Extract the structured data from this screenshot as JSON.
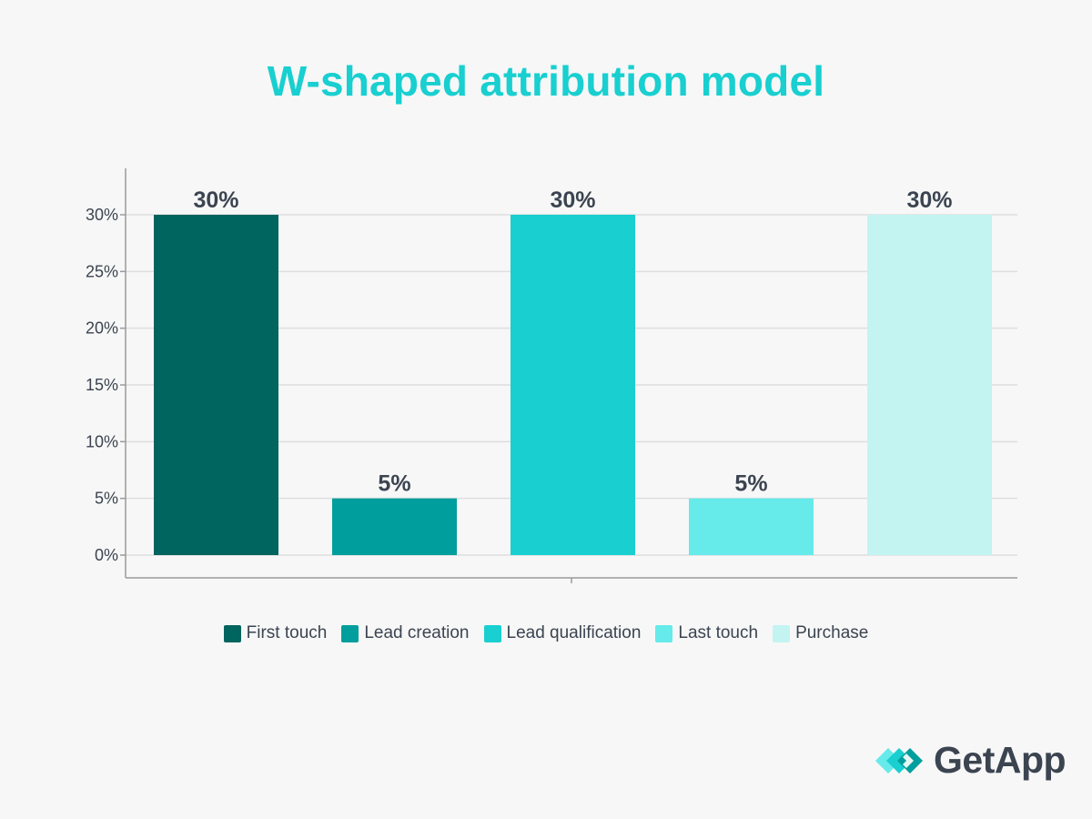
{
  "title": "W-shaped attribution model",
  "chart_data": {
    "type": "bar",
    "categories": [
      "First touch",
      "Lead creation",
      "Lead qualification",
      "Last touch",
      "Purchase"
    ],
    "values": [
      30,
      5,
      30,
      5,
      30
    ],
    "data_labels": [
      "30%",
      "5%",
      "30%",
      "5%",
      "30%"
    ],
    "colors": [
      "#00645f",
      "#009e9c",
      "#19cfd0",
      "#66eaea",
      "#c3f4f2"
    ],
    "y_ticks": [
      0,
      5,
      10,
      15,
      20,
      25,
      30
    ],
    "y_tick_labels": [
      "0%",
      "5%",
      "10%",
      "15%",
      "20%",
      "25%",
      "30%"
    ],
    "ylim": [
      0,
      30
    ],
    "xlabel": "",
    "ylabel": "",
    "grid": true,
    "legend_position": "bottom"
  },
  "logo": {
    "text": "GetApp",
    "icon": "getapp-logo-icon"
  }
}
